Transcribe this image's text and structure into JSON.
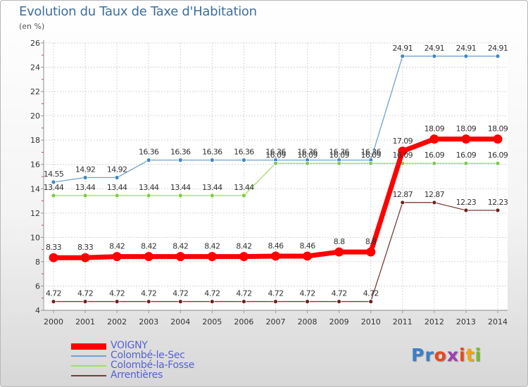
{
  "title": "Evolution du Taux de Taxe d'Habitation",
  "subtitle": "(en %)",
  "logo": "Proxiti",
  "logo_colors": [
    "#3a80c8",
    "#3a80c8",
    "#e8481b",
    "#9c3fb1",
    "#e8481b",
    "#f2a711",
    "#7ab929"
  ],
  "chart_data": {
    "type": "line",
    "x": [
      "2000",
      "2001",
      "2002",
      "2003",
      "2004",
      "2005",
      "2006",
      "2007",
      "2008",
      "2009",
      "2010",
      "2011",
      "2012",
      "2013",
      "2014"
    ],
    "ylim": [
      4,
      26
    ],
    "yticks": [
      4,
      6,
      8,
      10,
      12,
      14,
      16,
      18,
      20,
      22,
      24,
      26
    ],
    "grid": true,
    "legend_position": "bottom-left",
    "series": [
      {
        "name": "VOIGNY",
        "color": "#ff0000",
        "emphasis": true,
        "values": [
          8.33,
          8.33,
          8.42,
          8.42,
          8.42,
          8.42,
          8.42,
          8.46,
          8.46,
          8.8,
          8.8,
          17.09,
          18.09,
          18.09,
          18.09
        ],
        "labels": [
          "8.33",
          "8.33",
          "8.42",
          "8.42",
          "8.42",
          "8.42",
          "8.42",
          "8.46",
          "8.46",
          "8.8",
          "8.8",
          "17.09",
          "18.09",
          "18.09",
          "18.09"
        ]
      },
      {
        "name": "Colombé-le-Sec",
        "color": "#6ea2d3",
        "marker": "#3f86c8",
        "values": [
          14.55,
          14.92,
          14.92,
          16.36,
          16.36,
          16.36,
          16.36,
          16.36,
          16.36,
          16.36,
          16.36,
          24.91,
          24.91,
          24.91,
          24.91
        ],
        "labels": [
          "14.55",
          "14.92",
          "14.92",
          "16.36",
          "16.36",
          "16.36",
          "16.36",
          "16.36",
          "16.36",
          "16.36",
          "16.36",
          "24.91",
          "24.91",
          "24.91",
          "24.91"
        ]
      },
      {
        "name": "Colombé-la-Fosse",
        "color": "#9ee06a",
        "marker": "#7bcf3f",
        "values": [
          13.44,
          13.44,
          13.44,
          13.44,
          13.44,
          13.44,
          13.44,
          16.09,
          16.09,
          16.09,
          16.09,
          16.09,
          16.09,
          16.09,
          16.09
        ],
        "labels": [
          "13.44",
          "13.44",
          "13.44",
          "13.44",
          "13.44",
          "13.44",
          "13.44",
          "16.09",
          "16.09",
          "16.09",
          "16.09",
          "16.09",
          "16.09",
          "16.09",
          "16.09"
        ]
      },
      {
        "name": "Arrentières",
        "color": "#7a3a3a",
        "marker": "#6e2020",
        "values": [
          4.72,
          4.72,
          4.72,
          4.72,
          4.72,
          4.72,
          4.72,
          4.72,
          4.72,
          4.72,
          4.72,
          12.87,
          12.87,
          12.23,
          12.23
        ],
        "labels": [
          "4.72",
          "4.72",
          "4.72",
          "4.72",
          "4.72",
          "4.72",
          "4.72",
          "4.72",
          "4.72",
          "4.72",
          "4.72",
          "12.87",
          "12.87",
          "12.23",
          "12.23"
        ]
      }
    ]
  }
}
